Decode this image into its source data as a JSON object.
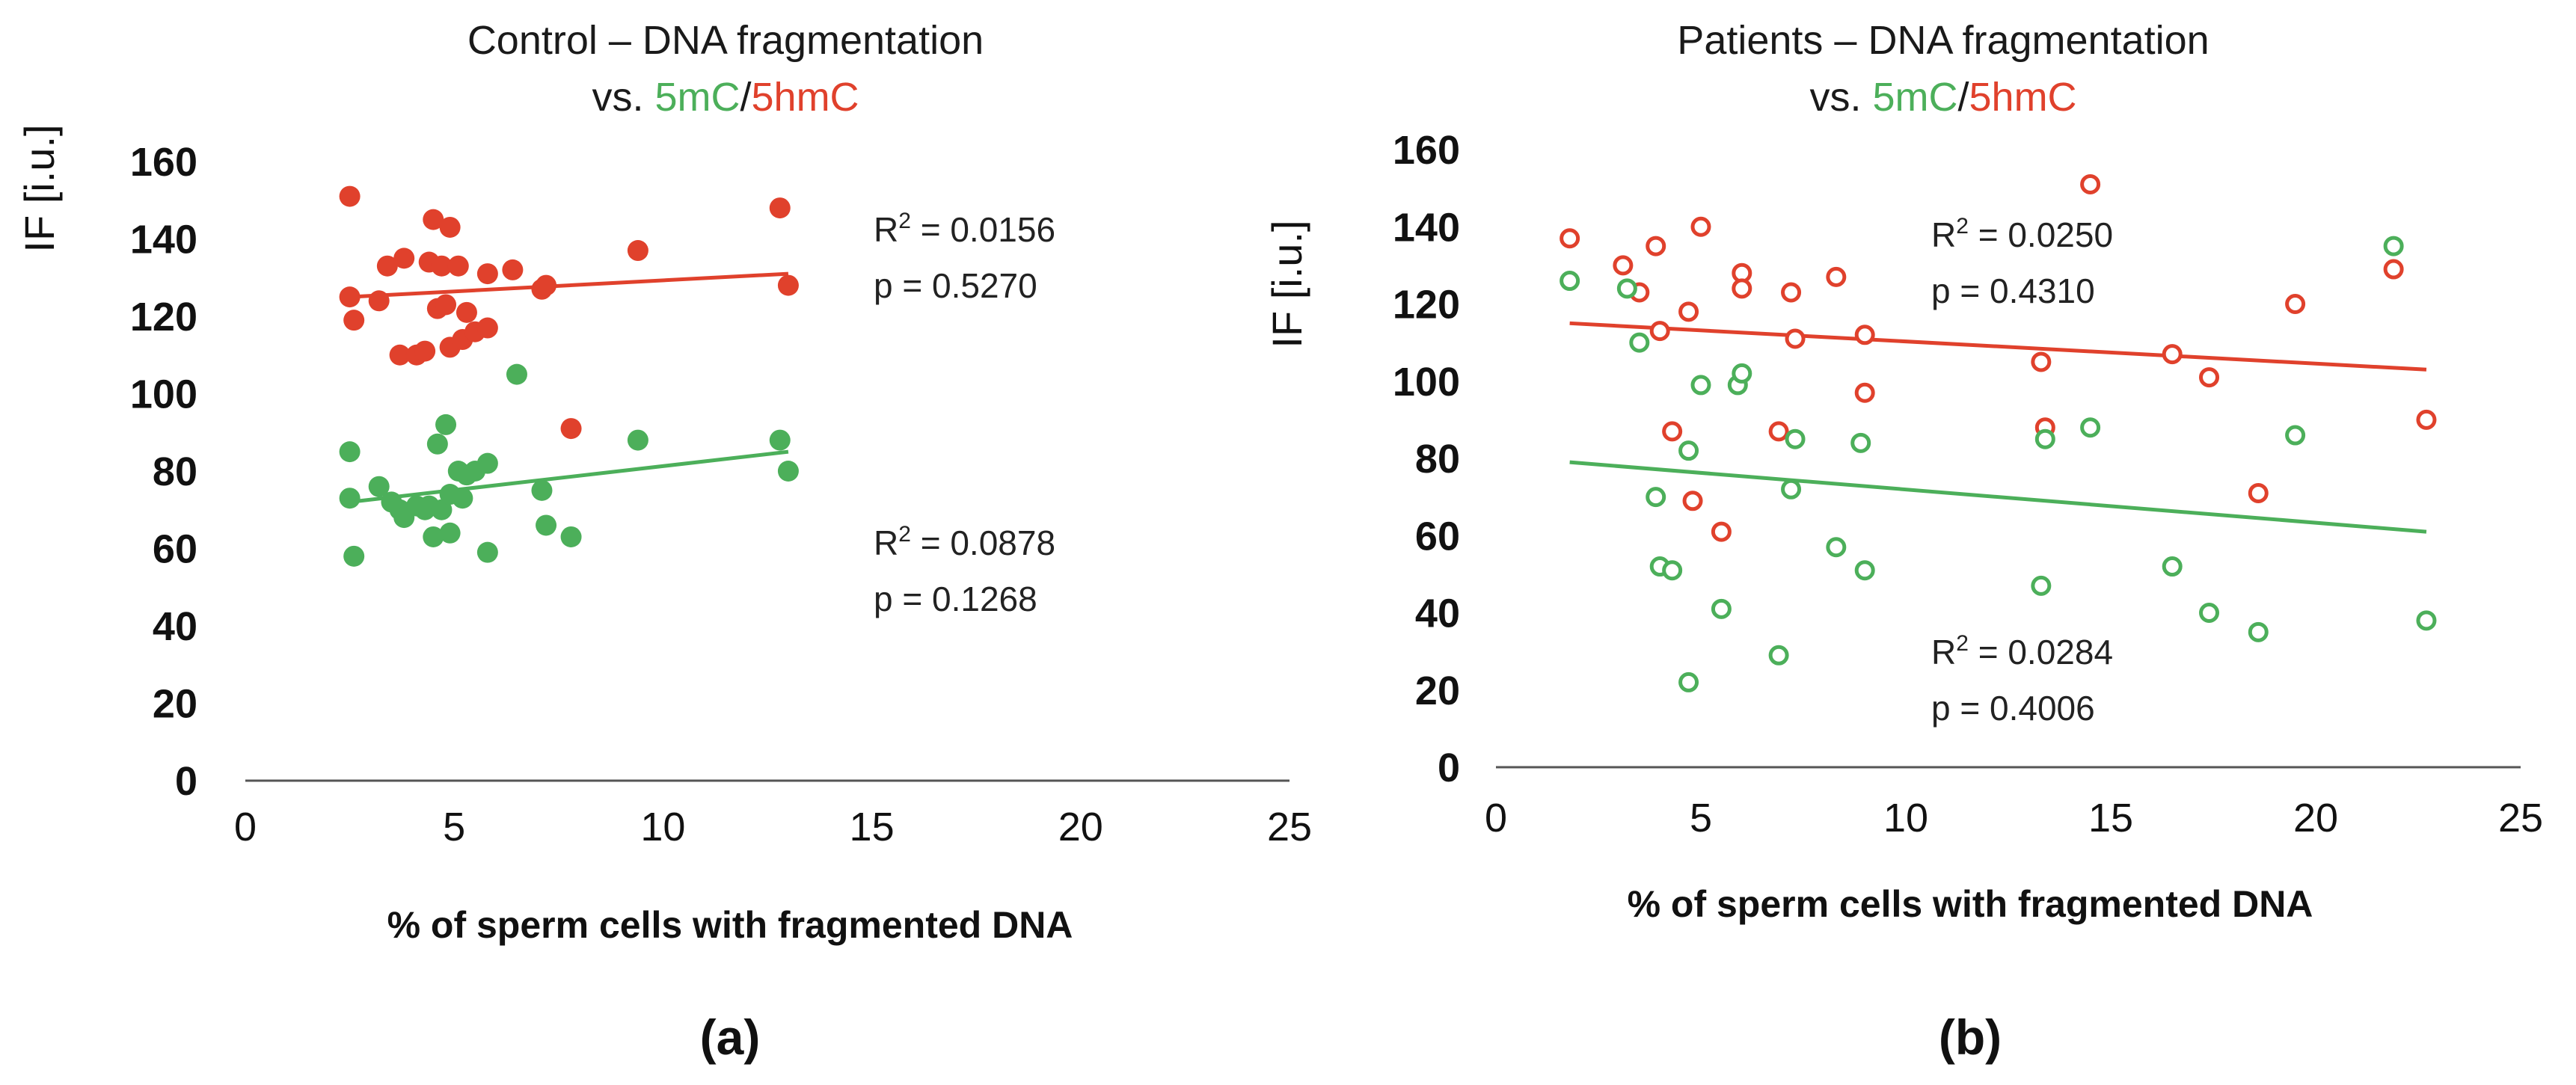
{
  "colors": {
    "green": "#4caf5a",
    "red": "#e0412c",
    "axis": "#555555",
    "text": "#111111"
  },
  "chart_data": [
    {
      "type": "scatter",
      "panel_label": "(a)",
      "title_line1": "Control – DNA fragmentation",
      "title_line2_prefix": "vs. ",
      "title_line2_green": "5mC",
      "title_line2_sep": "/",
      "title_line2_red": "5hmC",
      "marker_style": "filled",
      "xlabel": "% of sperm cells with fragmented DNA",
      "ylabel": "IF [i.u.]",
      "xlim": [
        0,
        25
      ],
      "ylim": [
        0,
        160
      ],
      "xticks": [
        "0",
        "5",
        "10",
        "15",
        "20",
        "25"
      ],
      "yticks": [
        "0",
        "20",
        "40",
        "60",
        "80",
        "100",
        "120",
        "140",
        "160"
      ],
      "series": [
        {
          "name": "5hmC",
          "color": "#e0412c",
          "points": [
            [
              2.5,
              151
            ],
            [
              2.5,
              125
            ],
            [
              2.6,
              119
            ],
            [
              3.2,
              124
            ],
            [
              3.4,
              133
            ],
            [
              3.7,
              110
            ],
            [
              3.8,
              135
            ],
            [
              4.1,
              110
            ],
            [
              4.3,
              111
            ],
            [
              4.4,
              134
            ],
            [
              4.5,
              145
            ],
            [
              4.6,
              122
            ],
            [
              4.7,
              133
            ],
            [
              4.8,
              123
            ],
            [
              4.9,
              112
            ],
            [
              4.9,
              143
            ],
            [
              5.1,
              133
            ],
            [
              5.2,
              114
            ],
            [
              5.3,
              121
            ],
            [
              5.5,
              116
            ],
            [
              5.8,
              117
            ],
            [
              5.8,
              131
            ],
            [
              6.4,
              132
            ],
            [
              7.1,
              127
            ],
            [
              7.2,
              128
            ],
            [
              7.8,
              91
            ],
            [
              9.4,
              137
            ],
            [
              12.8,
              148
            ],
            [
              13.0,
              128
            ]
          ],
          "trend": [
            [
              2.5,
              125
            ],
            [
              13.0,
              131
            ]
          ],
          "r2": "R2 = 0.0156",
          "p": "p = 0.5270"
        },
        {
          "name": "5mC",
          "color": "#4caf5a",
          "points": [
            [
              2.5,
              85
            ],
            [
              2.5,
              73
            ],
            [
              2.6,
              58
            ],
            [
              3.2,
              76
            ],
            [
              3.5,
              72
            ],
            [
              3.7,
              70
            ],
            [
              3.8,
              68
            ],
            [
              4.1,
              71
            ],
            [
              4.3,
              70
            ],
            [
              4.4,
              71
            ],
            [
              4.5,
              63
            ],
            [
              4.6,
              87
            ],
            [
              4.7,
              70
            ],
            [
              4.8,
              92
            ],
            [
              4.9,
              64
            ],
            [
              4.9,
              74
            ],
            [
              5.1,
              80
            ],
            [
              5.2,
              73
            ],
            [
              5.3,
              79
            ],
            [
              5.5,
              80
            ],
            [
              5.8,
              59
            ],
            [
              5.8,
              82
            ],
            [
              6.5,
              105
            ],
            [
              7.1,
              75
            ],
            [
              7.2,
              66
            ],
            [
              7.8,
              63
            ],
            [
              9.4,
              88
            ],
            [
              12.8,
              88
            ],
            [
              13.0,
              80
            ]
          ],
          "trend": [
            [
              2.5,
              72
            ],
            [
              13.0,
              85
            ]
          ],
          "r2": "R2 = 0.0878",
          "p": "p = 0.1268"
        }
      ]
    },
    {
      "type": "scatter",
      "panel_label": "(b)",
      "title_line1": "Patients – DNA fragmentation",
      "title_line2_prefix": "vs. ",
      "title_line2_green": "5mC",
      "title_line2_sep": "/",
      "title_line2_red": "5hmC",
      "marker_style": "open",
      "xlabel": "% of sperm cells with fragmented DNA",
      "ylabel": "IF [i.u.]",
      "xlim": [
        0,
        25
      ],
      "ylim": [
        0,
        160
      ],
      "xticks": [
        "0",
        "5",
        "10",
        "15",
        "20",
        "25"
      ],
      "yticks": [
        "0",
        "20",
        "40",
        "60",
        "80",
        "100",
        "120",
        "140",
        "160"
      ],
      "series": [
        {
          "name": "5hmC",
          "color": "#e0412c",
          "points": [
            [
              1.8,
              137
            ],
            [
              3.1,
              130
            ],
            [
              3.5,
              123
            ],
            [
              3.9,
              135
            ],
            [
              4.0,
              113
            ],
            [
              4.3,
              87
            ],
            [
              4.7,
              118
            ],
            [
              4.8,
              69
            ],
            [
              5.0,
              140
            ],
            [
              5.5,
              61
            ],
            [
              6.0,
              128
            ],
            [
              6.0,
              124
            ],
            [
              6.9,
              87
            ],
            [
              7.2,
              123
            ],
            [
              7.3,
              111
            ],
            [
              8.3,
              127
            ],
            [
              9.0,
              112
            ],
            [
              9.0,
              97
            ],
            [
              13.3,
              105
            ],
            [
              13.4,
              88
            ],
            [
              14.5,
              151
            ],
            [
              16.5,
              107
            ],
            [
              17.4,
              101
            ],
            [
              18.6,
              71
            ],
            [
              19.5,
              120
            ],
            [
              21.9,
              129
            ],
            [
              22.7,
              90
            ]
          ],
          "trend": [
            [
              1.8,
              115
            ],
            [
              22.7,
              103
            ]
          ],
          "r2": "R2 = 0.0250",
          "p": "p = 0.4310"
        },
        {
          "name": "5mC",
          "color": "#4caf5a",
          "points": [
            [
              1.8,
              126
            ],
            [
              3.2,
              124
            ],
            [
              3.5,
              110
            ],
            [
              3.9,
              70
            ],
            [
              4.0,
              52
            ],
            [
              4.3,
              51
            ],
            [
              4.7,
              82
            ],
            [
              4.7,
              22
            ],
            [
              5.0,
              99
            ],
            [
              5.5,
              41
            ],
            [
              5.9,
              99
            ],
            [
              6.0,
              102
            ],
            [
              6.9,
              29
            ],
            [
              7.2,
              72
            ],
            [
              7.3,
              85
            ],
            [
              8.3,
              57
            ],
            [
              8.9,
              84
            ],
            [
              9.0,
              51
            ],
            [
              13.3,
              47
            ],
            [
              13.4,
              85
            ],
            [
              14.5,
              88
            ],
            [
              16.5,
              52
            ],
            [
              17.4,
              40
            ],
            [
              18.6,
              35
            ],
            [
              19.5,
              86
            ],
            [
              21.9,
              135
            ],
            [
              22.7,
              38
            ]
          ],
          "trend": [
            [
              1.8,
              79
            ],
            [
              22.7,
              61
            ]
          ],
          "r2": "R2 = 0.0284",
          "p": "p = 0.4006"
        }
      ]
    }
  ]
}
